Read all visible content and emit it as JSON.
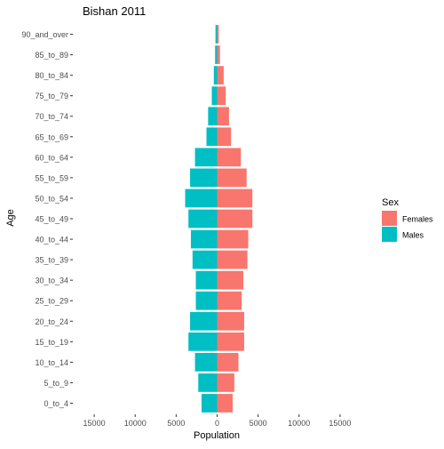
{
  "chart_data": {
    "type": "bar",
    "orientation": "horizontal",
    "title": "Bishan  2011",
    "xlabel": "Population",
    "ylabel": "Age",
    "xlim": [
      -17500,
      17500
    ],
    "x_ticks": [
      -15000,
      -10000,
      -5000,
      0,
      5000,
      10000,
      15000
    ],
    "x_tick_labels": [
      "15000",
      "10000",
      "5000",
      "0",
      "5000",
      "10000",
      "15000"
    ],
    "grid": false,
    "legend_position": "right",
    "legend_title": "Sex",
    "categories": [
      "0_to_4",
      "5_to_9",
      "10_to_14",
      "15_to_19",
      "20_to_24",
      "25_to_29",
      "30_to_34",
      "35_to_39",
      "40_to_44",
      "45_to_49",
      "50_to_54",
      "55_to_59",
      "60_to_64",
      "65_to_69",
      "70_to_74",
      "75_to_79",
      "80_to_84",
      "85_to_89",
      "90_and_over"
    ],
    "series": [
      {
        "name": "Females",
        "color": "#F8766D",
        "values": [
          1900,
          2100,
          2600,
          3300,
          3300,
          3000,
          3200,
          3700,
          3800,
          4300,
          4300,
          3600,
          2900,
          1700,
          1450,
          1050,
          800,
          350,
          200
        ]
      },
      {
        "name": "Males",
        "color": "#00BFC4",
        "values": [
          1900,
          2300,
          2700,
          3500,
          3300,
          2600,
          2600,
          3000,
          3200,
          3500,
          3900,
          3300,
          2700,
          1300,
          1100,
          650,
          400,
          250,
          200
        ]
      }
    ]
  }
}
